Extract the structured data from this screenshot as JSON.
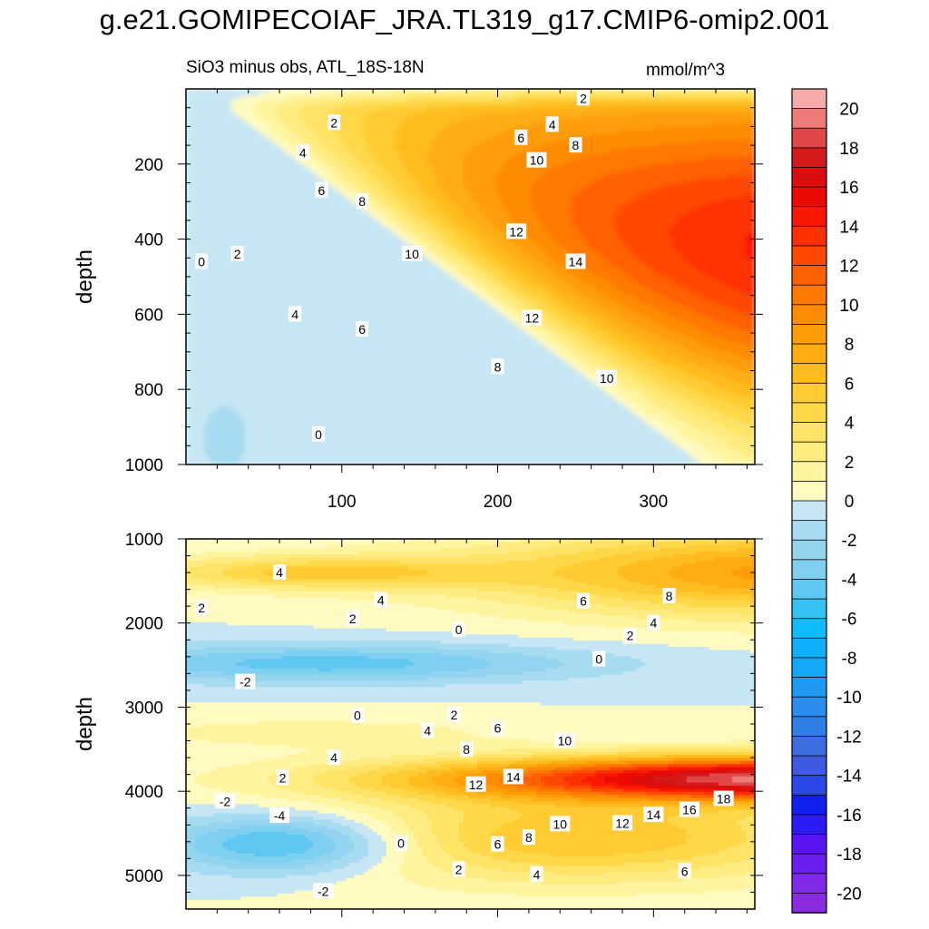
{
  "title": "g.e21.GOMIPECOIAF_JRA.TL319_g17.CMIP6-omip2.001",
  "subtitle": "SiO3 minus obs, ATL_18S-18N",
  "units": "mmol/m^3",
  "chart_data": [
    {
      "type": "heatmap",
      "panel": "upper",
      "xlim": [
        0,
        365
      ],
      "ylim": [
        1000,
        0
      ],
      "xticks": [
        "100",
        "200",
        "300"
      ],
      "yticks": [
        "200",
        "400",
        "600",
        "800",
        "1000"
      ],
      "ylabel": "depth",
      "contour_labels": [
        {
          "text": "2",
          "x": 95,
          "y": 90
        },
        {
          "text": "4",
          "x": 75,
          "y": 170
        },
        {
          "text": "6",
          "x": 87,
          "y": 270
        },
        {
          "text": "8",
          "x": 113,
          "y": 300
        },
        {
          "text": "0",
          "x": 10,
          "y": 460
        },
        {
          "text": "2",
          "x": 33,
          "y": 440
        },
        {
          "text": "10",
          "x": 145,
          "y": 440
        },
        {
          "text": "4",
          "x": 70,
          "y": 600
        },
        {
          "text": "6",
          "x": 113,
          "y": 640
        },
        {
          "text": "0",
          "x": 85,
          "y": 920
        },
        {
          "text": "8",
          "x": 200,
          "y": 740
        },
        {
          "text": "2",
          "x": 255,
          "y": 25
        },
        {
          "text": "4",
          "x": 235,
          "y": 95
        },
        {
          "text": "6",
          "x": 215,
          "y": 130
        },
        {
          "text": "8",
          "x": 250,
          "y": 150
        },
        {
          "text": "10",
          "x": 225,
          "y": 190
        },
        {
          "text": "12",
          "x": 212,
          "y": 380
        },
        {
          "text": "14",
          "x": 250,
          "y": 460
        },
        {
          "text": "12",
          "x": 222,
          "y": 610
        },
        {
          "text": "10",
          "x": 270,
          "y": 770
        }
      ],
      "field_description": {
        "core_max": 16,
        "core_location": {
          "x": 360,
          "y": 470
        },
        "near_zero_region": {
          "x_range": [
            0,
            20
          ],
          "y_range": [
            0,
            1000
          ]
        },
        "negative_patch": {
          "x_range": [
            0,
            55
          ],
          "y_range": [
            740,
            1000
          ],
          "value": -1
        }
      }
    },
    {
      "type": "heatmap",
      "panel": "lower",
      "xlim": [
        0,
        365
      ],
      "ylim": [
        5400,
        1000
      ],
      "yticks": [
        "1000",
        "2000",
        "3000",
        "4000",
        "5000"
      ],
      "ylabel": "depth",
      "contour_labels": [
        {
          "text": "4",
          "x": 60,
          "y": 1400
        },
        {
          "text": "2",
          "x": 10,
          "y": 1820
        },
        {
          "text": "4",
          "x": 125,
          "y": 1730
        },
        {
          "text": "2",
          "x": 107,
          "y": 1950
        },
        {
          "text": "0",
          "x": 175,
          "y": 2080
        },
        {
          "text": "6",
          "x": 255,
          "y": 1740
        },
        {
          "text": "8",
          "x": 310,
          "y": 1680
        },
        {
          "text": "4",
          "x": 300,
          "y": 2000
        },
        {
          "text": "2",
          "x": 285,
          "y": 2150
        },
        {
          "text": "0",
          "x": 265,
          "y": 2430
        },
        {
          "text": "-2",
          "x": 38,
          "y": 2700
        },
        {
          "text": "0",
          "x": 110,
          "y": 3100
        },
        {
          "text": "2",
          "x": 172,
          "y": 3090
        },
        {
          "text": "4",
          "x": 155,
          "y": 3280
        },
        {
          "text": "6",
          "x": 200,
          "y": 3250
        },
        {
          "text": "8",
          "x": 180,
          "y": 3500
        },
        {
          "text": "10",
          "x": 243,
          "y": 3400
        },
        {
          "text": "4",
          "x": 95,
          "y": 3600
        },
        {
          "text": "2",
          "x": 62,
          "y": 3840
        },
        {
          "text": "12",
          "x": 186,
          "y": 3920
        },
        {
          "text": "14",
          "x": 210,
          "y": 3830
        },
        {
          "text": "-2",
          "x": 25,
          "y": 4120
        },
        {
          "text": "-4",
          "x": 60,
          "y": 4290
        },
        {
          "text": "0",
          "x": 138,
          "y": 4620
        },
        {
          "text": "-2",
          "x": 88,
          "y": 5190
        },
        {
          "text": "10",
          "x": 240,
          "y": 4390
        },
        {
          "text": "8",
          "x": 220,
          "y": 4550
        },
        {
          "text": "6",
          "x": 200,
          "y": 4630
        },
        {
          "text": "2",
          "x": 175,
          "y": 4930
        },
        {
          "text": "4",
          "x": 225,
          "y": 4990
        },
        {
          "text": "12",
          "x": 280,
          "y": 4380
        },
        {
          "text": "14",
          "x": 300,
          "y": 4280
        },
        {
          "text": "16",
          "x": 323,
          "y": 4220
        },
        {
          "text": "18",
          "x": 345,
          "y": 4090
        },
        {
          "text": "6",
          "x": 320,
          "y": 4950
        }
      ],
      "field_description": {
        "core_max": 20,
        "core_location": {
          "x": 350,
          "y": 3850
        },
        "min": -6,
        "min_location": {
          "x": 65,
          "y": 4620
        },
        "negative_tongue": {
          "x_range": [
            0,
            260
          ],
          "y_range": [
            2100,
            2950
          ],
          "value": -2
        }
      }
    }
  ],
  "colorbar": {
    "labels": [
      "20",
      "18",
      "16",
      "14",
      "12",
      "10",
      "8",
      "6",
      "4",
      "2",
      "0",
      "-2",
      "-4",
      "-6",
      "-8",
      "-10",
      "-12",
      "-14",
      "-16",
      "-18",
      "-20"
    ],
    "levels_min": -21,
    "levels_max": 21,
    "level_step": 1,
    "colors": {
      "-21": "#8a2be2",
      "-20": "#7f2ae6",
      "-19": "#6a1ff0",
      "-18": "#5a14f5",
      "-17": "#2b1cf5",
      "-16": "#1020f0",
      "-15": "#2a47e8",
      "-14": "#3e5ae0",
      "-13": "#3b6fe0",
      "-12": "#2f80e6",
      "-11": "#2a8eef",
      "-10": "#1f9af2",
      "-9": "#14a8f8",
      "-8": "#0fb0fb",
      "-7": "#0cbcfd",
      "-6": "#34c2f5",
      "-5": "#5ec8f2",
      "-4": "#7ecff0",
      "-3": "#93d4ef",
      "-2": "#a6dbf1",
      "-1": "#c7e6f3",
      "0": "#fffbc0",
      "1": "#fff4a0",
      "2": "#ffec80",
      "3": "#ffe366",
      "4": "#ffd84a",
      "5": "#ffcb33",
      "6": "#ffbc1f",
      "7": "#ffad12",
      "8": "#ff9d08",
      "9": "#ff8c04",
      "10": "#ff7800",
      "11": "#ff6000",
      "12": "#ff4800",
      "13": "#ff3000",
      "14": "#fa1800",
      "15": "#ec0b00",
      "16": "#dc0d0d",
      "17": "#d41a1a",
      "18": "#e04848",
      "19": "#ee7a7a",
      "20": "#f7aaaa"
    }
  }
}
